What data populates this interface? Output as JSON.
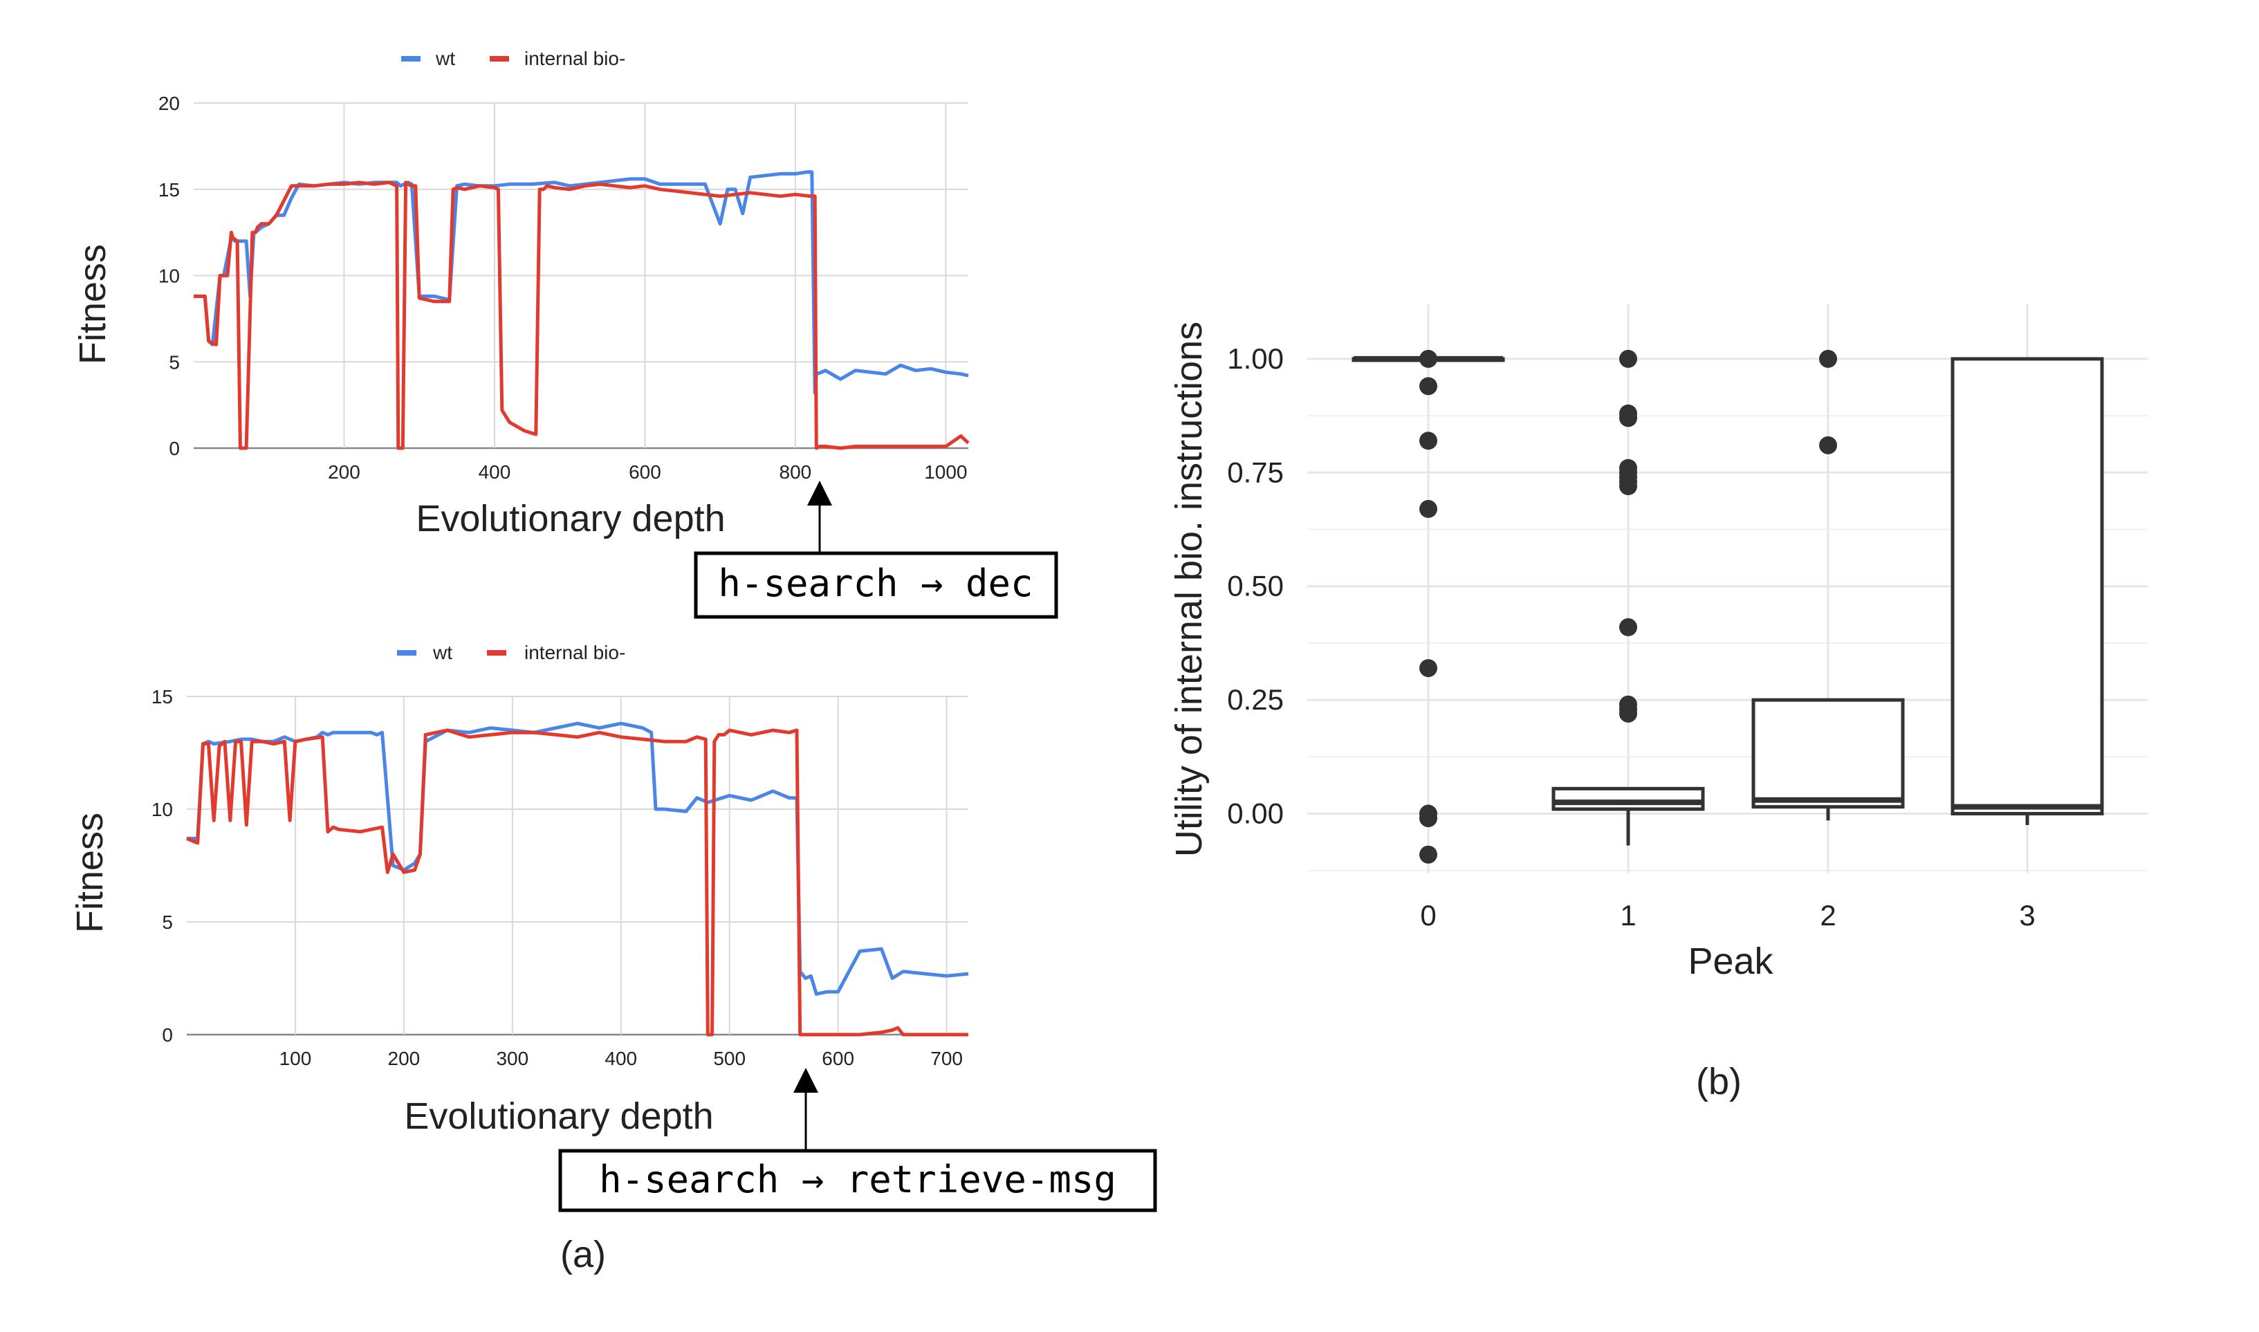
{
  "chart_data": [
    {
      "type": "line",
      "panel": "(a) top",
      "xlabel": "Evolutionary depth",
      "ylabel": "Fitness",
      "xlim": [
        0,
        1030
      ],
      "ylim": [
        0,
        20
      ],
      "xticks": [
        200,
        400,
        600,
        800,
        1000
      ],
      "yticks": [
        0,
        5,
        10,
        15,
        20
      ],
      "grid": true,
      "legend": "top-center",
      "colors": {
        "wt": "#4a86e8",
        "internal": "#e23a2e"
      },
      "series": [
        {
          "name": "wt",
          "x": [
            0,
            15,
            20,
            25,
            35,
            40,
            50,
            55,
            70,
            75,
            80,
            82,
            90,
            100,
            110,
            120,
            130,
            140,
            160,
            180,
            200,
            220,
            240,
            270,
            275,
            285,
            290,
            300,
            320,
            340,
            350,
            360,
            380,
            400,
            420,
            450,
            480,
            500,
            520,
            540,
            560,
            580,
            600,
            620,
            640,
            660,
            680,
            700,
            710,
            720,
            730,
            740,
            760,
            780,
            800,
            815,
            822,
            826,
            828,
            835,
            840,
            860,
            880,
            900,
            920,
            940,
            960,
            980,
            1000,
            1020,
            1030
          ],
          "values": [
            8.8,
            8.8,
            6.2,
            6.0,
            10.0,
            10.0,
            12.2,
            12.0,
            12.0,
            8.8,
            12.5,
            12.5,
            12.8,
            13.0,
            13.5,
            13.5,
            14.5,
            15.3,
            15.2,
            15.3,
            15.4,
            15.3,
            15.4,
            15.4,
            15.2,
            15.4,
            15.3,
            8.8,
            8.8,
            8.6,
            15.2,
            15.3,
            15.2,
            15.2,
            15.3,
            15.3,
            15.4,
            15.2,
            15.3,
            15.4,
            15.5,
            15.6,
            15.6,
            15.3,
            15.3,
            15.3,
            15.3,
            13.0,
            15.0,
            15.0,
            13.6,
            15.7,
            15.8,
            15.9,
            15.9,
            16.0,
            16.0,
            3.2,
            4.3,
            4.4,
            4.5,
            4.0,
            4.5,
            4.4,
            4.3,
            4.8,
            4.5,
            4.6,
            4.4,
            4.3,
            4.2
          ]
        },
        {
          "name": "internal bio-",
          "x": [
            0,
            15,
            20,
            30,
            35,
            45,
            50,
            52,
            58,
            62,
            70,
            78,
            82,
            85,
            90,
            100,
            110,
            130,
            140,
            160,
            180,
            200,
            220,
            240,
            260,
            270,
            272,
            278,
            282,
            285,
            290,
            295,
            300,
            320,
            340,
            345,
            350,
            360,
            380,
            400,
            405,
            410,
            420,
            440,
            455,
            460,
            465,
            470,
            480,
            500,
            520,
            540,
            560,
            580,
            600,
            620,
            640,
            660,
            680,
            700,
            720,
            740,
            760,
            780,
            800,
            820,
            826,
            828,
            832,
            840,
            860,
            880,
            900,
            920,
            940,
            960,
            980,
            1000,
            1010,
            1020,
            1030
          ],
          "values": [
            8.8,
            8.8,
            6.2,
            6.0,
            10.0,
            10.0,
            12.5,
            12.2,
            12.0,
            0.0,
            0.0,
            12.5,
            12.5,
            12.8,
            13.0,
            13.0,
            13.5,
            15.2,
            15.2,
            15.2,
            15.3,
            15.3,
            15.4,
            15.3,
            15.4,
            15.2,
            0.0,
            0.0,
            15.4,
            15.3,
            15.2,
            15.2,
            8.7,
            8.5,
            8.5,
            15.0,
            15.1,
            15.0,
            15.2,
            15.1,
            15.0,
            2.2,
            1.5,
            1.0,
            0.8,
            15.0,
            15.0,
            15.2,
            15.1,
            15.0,
            15.2,
            15.3,
            15.2,
            15.1,
            15.2,
            15.0,
            14.9,
            14.8,
            14.7,
            14.6,
            14.7,
            14.8,
            14.7,
            14.6,
            14.7,
            14.6,
            14.6,
            0.0,
            0.1,
            0.1,
            0.0,
            0.1,
            0.1,
            0.1,
            0.1,
            0.1,
            0.1,
            0.1,
            0.4,
            0.7,
            0.3
          ]
        }
      ]
    },
    {
      "type": "line",
      "panel": "(a) bottom",
      "xlabel": "Evolutionary depth",
      "ylabel": "Fitness",
      "xlim": [
        0,
        720
      ],
      "ylim": [
        0,
        15
      ],
      "xticks": [
        100,
        200,
        300,
        400,
        500,
        600,
        700
      ],
      "yticks": [
        0,
        5,
        10,
        15
      ],
      "grid": true,
      "legend": "top-center",
      "series": [
        {
          "name": "wt",
          "x": [
            0,
            10,
            15,
            20,
            25,
            40,
            50,
            55,
            60,
            70,
            80,
            90,
            100,
            110,
            120,
            125,
            130,
            135,
            140,
            160,
            170,
            175,
            180,
            190,
            200,
            210,
            215,
            220,
            240,
            260,
            280,
            300,
            320,
            340,
            360,
            380,
            400,
            420,
            428,
            432,
            440,
            460,
            470,
            480,
            500,
            520,
            540,
            555,
            562,
            565,
            570,
            575,
            580,
            590,
            600,
            620,
            640,
            650,
            660,
            680,
            700,
            720
          ],
          "values": [
            8.7,
            8.7,
            12.9,
            13.0,
            12.9,
            13.0,
            13.1,
            13.1,
            13.1,
            13.0,
            13.0,
            13.2,
            13.0,
            13.1,
            13.2,
            13.4,
            13.3,
            13.4,
            13.4,
            13.4,
            13.4,
            13.3,
            13.4,
            7.5,
            7.3,
            7.6,
            8.0,
            13.0,
            13.5,
            13.4,
            13.6,
            13.5,
            13.4,
            13.6,
            13.8,
            13.6,
            13.8,
            13.6,
            13.4,
            10.0,
            10.0,
            9.9,
            10.5,
            10.3,
            10.6,
            10.4,
            10.8,
            10.5,
            10.5,
            2.8,
            2.5,
            2.6,
            1.8,
            1.9,
            1.9,
            3.7,
            3.8,
            2.5,
            2.8,
            2.7,
            2.6,
            2.7
          ]
        },
        {
          "name": "internal bio-",
          "x": [
            0,
            10,
            15,
            20,
            25,
            30,
            35,
            40,
            45,
            50,
            55,
            60,
            70,
            80,
            90,
            95,
            100,
            110,
            125,
            130,
            135,
            140,
            160,
            170,
            180,
            185,
            190,
            200,
            210,
            215,
            220,
            240,
            260,
            280,
            300,
            320,
            340,
            360,
            380,
            400,
            420,
            440,
            460,
            470,
            478,
            480,
            484,
            486,
            490,
            495,
            500,
            520,
            540,
            555,
            562,
            565,
            570,
            580,
            600,
            620,
            640,
            650,
            655,
            660,
            680,
            700,
            720
          ],
          "values": [
            8.7,
            8.5,
            12.9,
            12.9,
            9.5,
            12.8,
            13.0,
            9.5,
            13.0,
            13.0,
            9.3,
            13.0,
            13.0,
            12.9,
            13.0,
            9.5,
            13.0,
            13.1,
            13.2,
            9.0,
            9.2,
            9.1,
            9.0,
            9.1,
            9.2,
            7.2,
            8.0,
            7.2,
            7.3,
            8.0,
            13.3,
            13.5,
            13.2,
            13.3,
            13.4,
            13.4,
            13.3,
            13.2,
            13.4,
            13.2,
            13.1,
            13.0,
            13.0,
            13.2,
            13.1,
            0.0,
            0.0,
            13.0,
            13.3,
            13.3,
            13.5,
            13.3,
            13.5,
            13.4,
            13.5,
            0.0,
            0.0,
            0.0,
            0.0,
            0.0,
            0.1,
            0.2,
            0.3,
            0.0,
            0.0,
            0.0,
            0.0
          ]
        }
      ]
    },
    {
      "type": "box",
      "panel": "(b)",
      "xlabel": "Peak",
      "ylabel": "Utility of internal bio. instructions",
      "categories": [
        "0",
        "1",
        "2",
        "3"
      ],
      "ylim": [
        -0.13,
        1.12
      ],
      "yticks": [
        0.0,
        0.25,
        0.5,
        0.75,
        1.0
      ],
      "grid": true,
      "boxes": [
        {
          "category": "0",
          "q1": 0.998,
          "median": 1.0,
          "q3": 1.0,
          "whisker_low": 0.995,
          "whisker_high": 1.0,
          "outliers": [
            1.0,
            0.94,
            0.82,
            0.67,
            0.32,
            0.0,
            -0.01,
            -0.09
          ]
        },
        {
          "category": "1",
          "q1": 0.01,
          "median": 0.025,
          "q3": 0.055,
          "whisker_low": -0.07,
          "whisker_high": 0.055,
          "outliers": [
            1.0,
            0.88,
            0.87,
            0.76,
            0.75,
            0.74,
            0.73,
            0.72,
            0.41,
            0.24,
            0.23,
            0.22
          ]
        },
        {
          "category": "2",
          "q1": 0.015,
          "median": 0.03,
          "q3": 0.25,
          "whisker_low": -0.015,
          "whisker_high": 0.25,
          "outliers": [
            1.0,
            0.81
          ]
        },
        {
          "category": "3",
          "q1": 0.0,
          "median": 0.015,
          "q3": 1.0,
          "whisker_low": -0.025,
          "whisker_high": 1.0,
          "outliers": []
        }
      ]
    }
  ],
  "panels": {
    "a_top": {
      "legend": [
        "wt",
        "internal bio-"
      ],
      "xlabel": "Evolutionary depth",
      "ylabel": "Fitness",
      "annotation": "h-search → dec"
    },
    "a_bottom": {
      "legend": [
        "wt",
        "internal bio-"
      ],
      "xlabel": "Evolutionary depth",
      "ylabel": "Fitness",
      "annotation": "h-search → retrieve-msg"
    },
    "a_caption": "(a)",
    "b": {
      "xlabel": "Peak",
      "ylabel": "Utility of internal bio. instructions",
      "caption": "(b)"
    }
  }
}
